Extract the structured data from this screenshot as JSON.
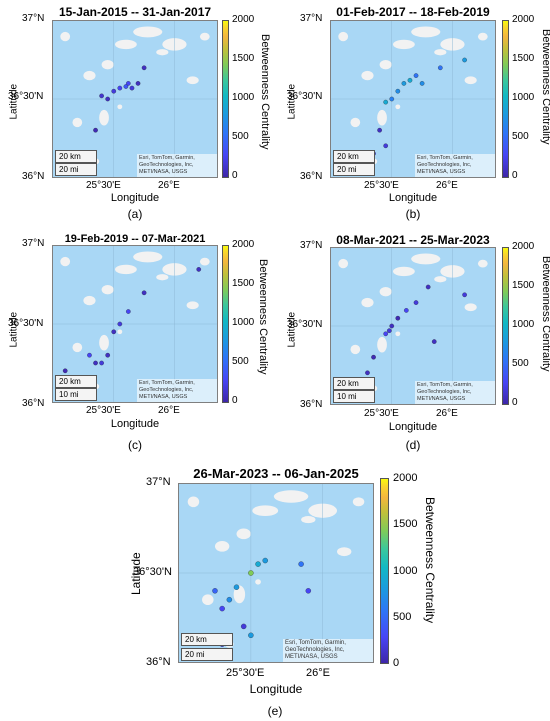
{
  "common": {
    "ylabel": "Latitude",
    "xlabel": "Longitude",
    "colorbar_label": "Betweenness Centrality",
    "colorbar_ticks": [
      "2000",
      "1500",
      "1000",
      "500",
      "0"
    ],
    "lat_ticks": [
      "37°N",
      "36°30'N",
      "36°N"
    ],
    "lon_ticks": [
      "25°30'E",
      "26°E"
    ],
    "attribution": "Esri, TomTom, Garmin, GeoTechnologies, Inc, METI/NASA, USGS",
    "colors": {
      "sea": "#a9d7f5",
      "land": "#f2f2f2",
      "low": "#3e26a8",
      "mid": "#1c9adf",
      "high": "#f9fb0e"
    }
  },
  "panels": [
    {
      "title": "15-Jan-2015 -- 31-Jan-2017",
      "caption": "(a)",
      "scale_km": "20 km",
      "scale_mi": "20 mi",
      "events": [
        [
          25.62,
          36.6,
          300
        ],
        [
          25.6,
          36.58,
          400
        ],
        [
          25.65,
          36.57,
          200
        ],
        [
          25.55,
          36.57,
          300
        ],
        [
          25.5,
          36.55,
          200
        ],
        [
          25.7,
          36.6,
          100
        ],
        [
          25.45,
          36.5,
          100
        ],
        [
          25.4,
          36.52,
          150
        ],
        [
          25.3,
          36.15,
          100
        ],
        [
          25.75,
          36.7,
          100
        ],
        [
          25.35,
          36.3,
          50
        ]
      ]
    },
    {
      "title": "01-Feb-2017 -- 18-Feb-2019",
      "caption": "(b)",
      "scale_km": "20 km",
      "scale_mi": "20 mi",
      "events": [
        [
          25.65,
          36.62,
          1000
        ],
        [
          25.6,
          36.6,
          900
        ],
        [
          25.55,
          36.55,
          800
        ],
        [
          25.5,
          36.5,
          700
        ],
        [
          25.45,
          36.48,
          1000
        ],
        [
          25.7,
          36.65,
          600
        ],
        [
          25.75,
          36.6,
          800
        ],
        [
          25.4,
          36.3,
          100
        ],
        [
          25.45,
          36.2,
          200
        ],
        [
          25.35,
          36.15,
          300
        ],
        [
          26.1,
          36.75,
          900
        ],
        [
          25.9,
          36.7,
          600
        ]
      ]
    },
    {
      "title": "19-Feb-2019 -- 07-Mar-2021",
      "caption": "(c)",
      "scale_km": "20 km",
      "scale_mi": "10 mi",
      "events": [
        [
          25.62,
          36.58,
          300
        ],
        [
          25.55,
          36.5,
          200
        ],
        [
          25.5,
          36.45,
          100
        ],
        [
          25.45,
          36.3,
          100
        ],
        [
          25.4,
          36.25,
          200
        ],
        [
          25.35,
          36.25,
          100
        ],
        [
          25.3,
          36.3,
          300
        ],
        [
          25.75,
          36.7,
          100
        ],
        [
          26.2,
          36.85,
          100
        ],
        [
          25.1,
          36.2,
          50
        ]
      ]
    },
    {
      "title": "08-Mar-2021 -- 25-Mar-2023",
      "caption": "(d)",
      "scale_km": "20 km",
      "scale_mi": "10 mi",
      "events": [
        [
          25.48,
          36.47,
          200
        ],
        [
          25.45,
          36.45,
          300
        ],
        [
          25.5,
          36.5,
          100
        ],
        [
          25.55,
          36.55,
          50
        ],
        [
          25.62,
          36.6,
          300
        ],
        [
          25.7,
          36.65,
          200
        ],
        [
          25.8,
          36.75,
          100
        ],
        [
          25.35,
          36.3,
          50
        ],
        [
          25.3,
          36.2,
          100
        ],
        [
          25.2,
          36.1,
          50
        ],
        [
          25.85,
          36.4,
          100
        ],
        [
          26.1,
          36.7,
          200
        ]
      ]
    },
    {
      "title": "26-Mar-2023 -- 06-Jan-2025",
      "caption": "(e)",
      "scale_km": "20 km",
      "scale_mi": "20 mi",
      "events": [
        [
          25.55,
          36.55,
          1000
        ],
        [
          25.6,
          36.57,
          900
        ],
        [
          25.5,
          36.5,
          1500
        ],
        [
          25.4,
          36.42,
          900
        ],
        [
          25.35,
          36.35,
          800
        ],
        [
          25.3,
          36.3,
          300
        ],
        [
          25.45,
          36.2,
          200
        ],
        [
          25.5,
          36.15,
          900
        ],
        [
          25.85,
          36.55,
          600
        ],
        [
          25.9,
          36.4,
          300
        ],
        [
          25.3,
          36.1,
          200
        ],
        [
          25.25,
          36.4,
          500
        ]
      ]
    }
  ]
}
